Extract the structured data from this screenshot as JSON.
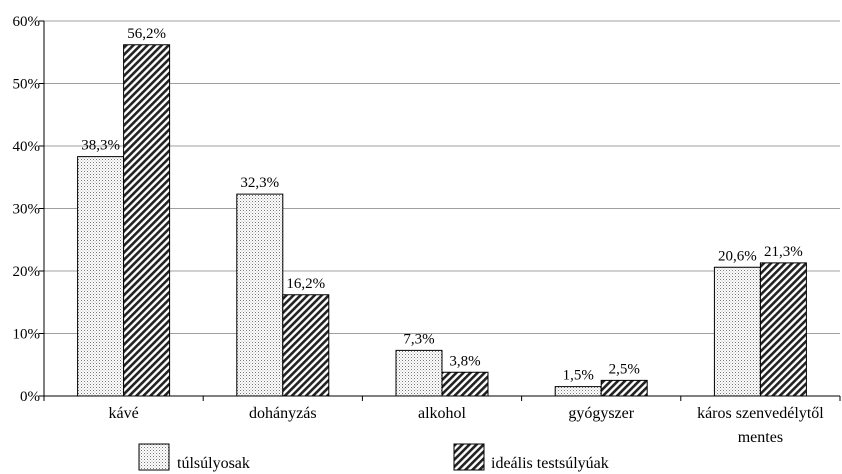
{
  "chart_data": {
    "type": "bar",
    "categories": [
      "kávé",
      "dohányzás",
      "alkohol",
      "gyógyszer",
      "káros szenvedélytől mentes"
    ],
    "series": [
      {
        "name": "túlsúlyosak",
        "values": [
          38.3,
          32.3,
          7.3,
          1.5,
          20.6
        ],
        "labels": [
          "38,3%",
          "32,3%",
          "7,3%",
          "1,5%",
          "20,6%"
        ],
        "pattern": "dotted"
      },
      {
        "name": "ideális testsúlyúak",
        "values": [
          56.2,
          16.2,
          3.8,
          2.5,
          21.3
        ],
        "labels": [
          "56,2%",
          "16,2%",
          "3,8%",
          "2,5%",
          "21,3%"
        ],
        "pattern": "hatched"
      }
    ],
    "y_ticks": [
      0,
      10,
      20,
      30,
      40,
      50,
      60
    ],
    "y_tick_labels": [
      "0%",
      "10%",
      "20%",
      "30%",
      "40%",
      "50%",
      "60%"
    ],
    "ylim": [
      0,
      60
    ],
    "grid": true,
    "legend_position": "bottom",
    "colors": {
      "gridline": "#a0a0a0",
      "axis": "#000000",
      "bar_outline": "#000000"
    }
  }
}
